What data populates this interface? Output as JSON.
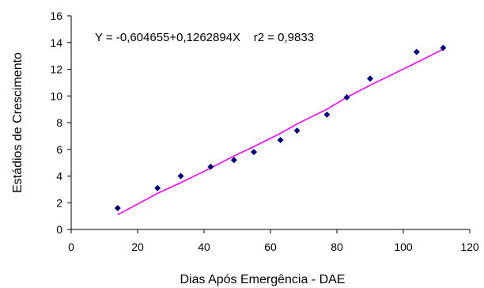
{
  "chart_data": {
    "type": "scatter",
    "title": "",
    "xlabel": "Dias Após Emergência - DAE",
    "ylabel": "Estádios de Crescimento",
    "xlim": [
      0,
      120
    ],
    "ylim": [
      0,
      16
    ],
    "x_ticks": [
      0,
      20,
      40,
      60,
      80,
      100,
      120
    ],
    "y_ticks": [
      0,
      2,
      4,
      6,
      8,
      10,
      12,
      14,
      16
    ],
    "grid": false,
    "legend": "none",
    "annotation": "Y = -0,604655+0,1262894X    r2 = 0,9833",
    "series": [
      {
        "kind": "scatter",
        "color": "#00007f",
        "marker": "diamond",
        "points": [
          {
            "x": 14,
            "y": 1.6
          },
          {
            "x": 26,
            "y": 3.1
          },
          {
            "x": 33,
            "y": 4.0
          },
          {
            "x": 42,
            "y": 4.7
          },
          {
            "x": 49,
            "y": 5.2
          },
          {
            "x": 55,
            "y": 5.8
          },
          {
            "x": 63,
            "y": 6.7
          },
          {
            "x": 68,
            "y": 7.4
          },
          {
            "x": 77,
            "y": 8.6
          },
          {
            "x": 83,
            "y": 9.9
          },
          {
            "x": 90,
            "y": 11.3
          },
          {
            "x": 104,
            "y": 13.3
          },
          {
            "x": 112,
            "y": 13.6
          }
        ]
      },
      {
        "kind": "line",
        "color": "#ff00ff",
        "points": [
          {
            "x": 14,
            "y": 1.1
          },
          {
            "x": 26,
            "y": 2.7
          },
          {
            "x": 33,
            "y": 3.5
          },
          {
            "x": 42,
            "y": 4.6
          },
          {
            "x": 49,
            "y": 5.5
          },
          {
            "x": 55,
            "y": 6.2
          },
          {
            "x": 63,
            "y": 7.2
          },
          {
            "x": 68,
            "y": 7.9
          },
          {
            "x": 77,
            "y": 9.0
          },
          {
            "x": 83,
            "y": 9.9
          },
          {
            "x": 90,
            "y": 10.8
          },
          {
            "x": 104,
            "y": 12.5
          },
          {
            "x": 112,
            "y": 13.5
          }
        ]
      }
    ]
  }
}
